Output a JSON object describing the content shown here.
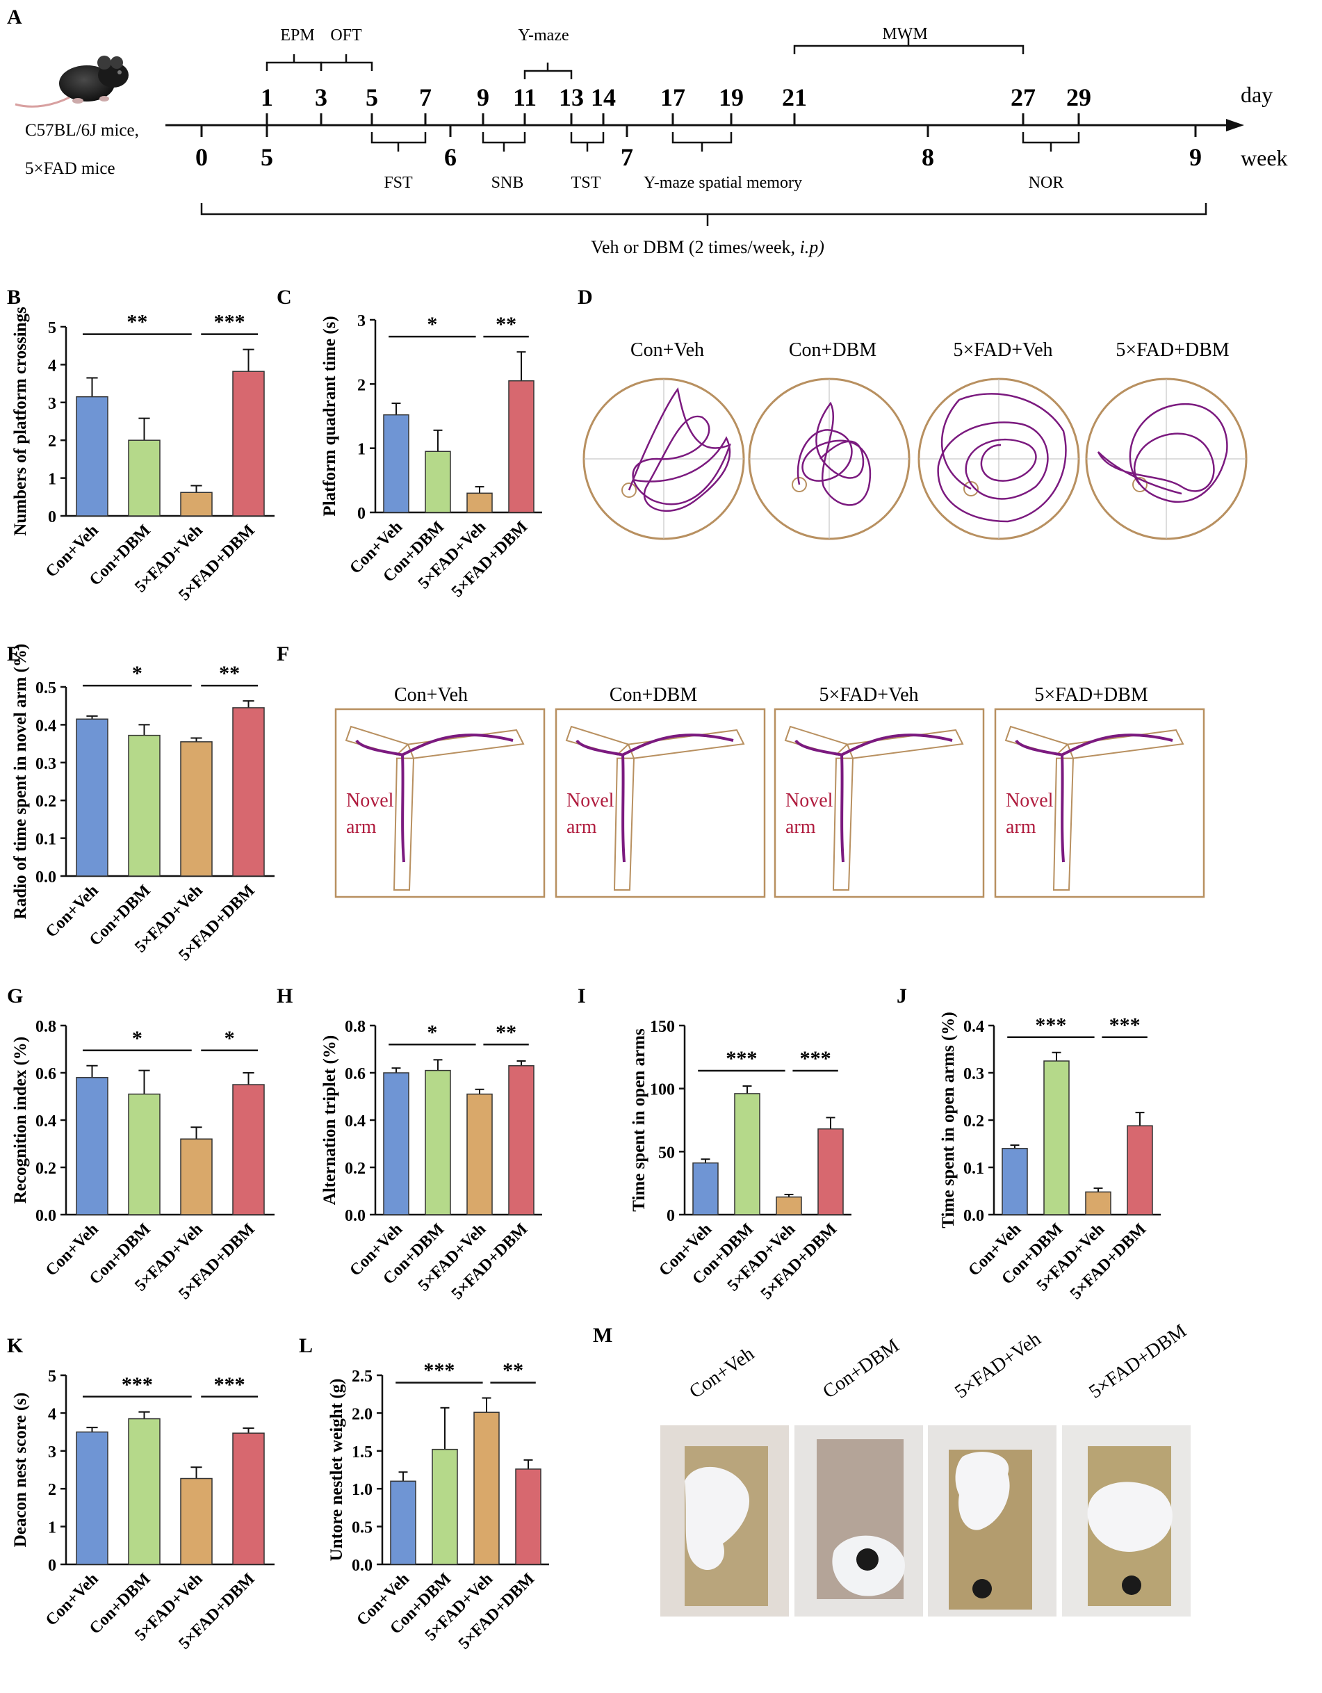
{
  "colors": {
    "blue": "#6f95d4",
    "green": "#b5d98a",
    "orange": "#d9a86a",
    "red": "#d7686f",
    "purple": "#7b1a7f",
    "tan": "#b89060",
    "novel": "#b01c3e",
    "black": "#111111"
  },
  "panel_letters": {
    "A": "A",
    "B": "B",
    "C": "C",
    "D": "D",
    "E": "E",
    "F": "F",
    "G": "G",
    "H": "H",
    "I": "I",
    "J": "J",
    "K": "K",
    "L": "L",
    "M": "M"
  },
  "timeline": {
    "mice": [
      "C57BL/6J mice,",
      "5×FAD mice"
    ],
    "day_label": "day",
    "week_label": "week",
    "day_numbers": [
      "1",
      "3",
      "5",
      "7",
      "9",
      "11",
      "13",
      "14",
      "17",
      "19",
      "21",
      "27",
      "29"
    ],
    "week_numbers": [
      "0",
      "5",
      "6",
      "7",
      "8",
      "9"
    ],
    "upper_tests": [
      "EPM",
      "OFT",
      "Y-maze",
      "MWM"
    ],
    "lower_tests": [
      "FST",
      "SNB",
      "TST",
      "Y-maze spatial memory",
      "NOR"
    ],
    "treatment": "Veh or DBM (2 times/week,",
    "treatment_route": "i.p)"
  },
  "groups": [
    "Con+Veh",
    "Con+DBM",
    "5×FAD+Veh",
    "5×FAD+DBM"
  ],
  "maze": {
    "novel_line1": "Novel",
    "novel_line2": "arm"
  },
  "photos": {
    "labels": [
      "Con+Veh",
      "Con+DBM",
      "5×FAD+Veh",
      "5×FAD+DBM"
    ]
  },
  "chart_data": [
    {
      "id": "B",
      "type": "bar",
      "ylabel": "Numbers of platform crossings",
      "categories": [
        "Con+Veh",
        "Con+DBM",
        "5×FAD+Veh",
        "5×FAD+DBM"
      ],
      "values": [
        3.15,
        2.0,
        0.62,
        3.82
      ],
      "errors": [
        0.5,
        0.58,
        0.18,
        0.58
      ],
      "ylim": [
        0,
        5
      ],
      "yticks": [
        "0",
        "1",
        "2",
        "3",
        "4",
        "5"
      ],
      "significance": [
        {
          "from": 0,
          "to": 2,
          "label": "**"
        },
        {
          "from": 2,
          "to": 3,
          "label": "***"
        }
      ]
    },
    {
      "id": "C",
      "type": "bar",
      "ylabel": "Platform quadrant time (s)",
      "categories": [
        "Con+Veh",
        "Con+DBM",
        "5×FAD+Veh",
        "5×FAD+DBM"
      ],
      "values": [
        1.52,
        0.95,
        0.3,
        2.05
      ],
      "errors": [
        0.18,
        0.33,
        0.1,
        0.45
      ],
      "ylim": [
        0,
        3
      ],
      "yticks": [
        "0",
        "1",
        "2",
        "3"
      ],
      "significance": [
        {
          "from": 0,
          "to": 2,
          "label": "*"
        },
        {
          "from": 2,
          "to": 3,
          "label": "**"
        }
      ]
    },
    {
      "id": "E",
      "type": "bar",
      "ylabel": "Radio of time spent in novel arm (%)",
      "categories": [
        "Con+Veh",
        "Con+DBM",
        "5×FAD+Veh",
        "5×FAD+DBM"
      ],
      "values": [
        0.415,
        0.372,
        0.355,
        0.445
      ],
      "errors": [
        0.008,
        0.028,
        0.01,
        0.018
      ],
      "ylim": [
        0,
        0.5
      ],
      "yticks": [
        "0.0",
        "0.1",
        "0.2",
        "0.3",
        "0.4",
        "0.5"
      ],
      "significance": [
        {
          "from": 0,
          "to": 2,
          "label": "*"
        },
        {
          "from": 2,
          "to": 3,
          "label": "**"
        }
      ]
    },
    {
      "id": "G",
      "type": "bar",
      "ylabel": "Recognition index (%)",
      "categories": [
        "Con+Veh",
        "Con+DBM",
        "5×FAD+Veh",
        "5×FAD+DBM"
      ],
      "values": [
        0.58,
        0.51,
        0.32,
        0.55
      ],
      "errors": [
        0.05,
        0.1,
        0.05,
        0.05
      ],
      "ylim": [
        0,
        0.8
      ],
      "yticks": [
        "0.0",
        "0.2",
        "0.4",
        "0.6",
        "0.8"
      ],
      "significance": [
        {
          "from": 0,
          "to": 2,
          "label": "*"
        },
        {
          "from": 2,
          "to": 3,
          "label": "*"
        }
      ]
    },
    {
      "id": "H",
      "type": "bar",
      "ylabel": "Alternation triplet (%)",
      "categories": [
        "Con+Veh",
        "Con+DBM",
        "5×FAD+Veh",
        "5×FAD+DBM"
      ],
      "values": [
        0.6,
        0.61,
        0.51,
        0.63
      ],
      "errors": [
        0.02,
        0.045,
        0.02,
        0.02
      ],
      "ylim": [
        0,
        0.8
      ],
      "yticks": [
        "0.0",
        "0.2",
        "0.4",
        "0.6",
        "0.8"
      ],
      "significance": [
        {
          "from": 0,
          "to": 2,
          "label": "*"
        },
        {
          "from": 2,
          "to": 3,
          "label": "**"
        }
      ]
    },
    {
      "id": "I",
      "type": "bar",
      "ylabel": "Time spent in open arms",
      "categories": [
        "Con+Veh",
        "Con+DBM",
        "5×FAD+Veh",
        "5×FAD+DBM"
      ],
      "values": [
        41,
        96,
        14,
        68
      ],
      "errors": [
        3,
        6,
        2,
        9
      ],
      "ylim": [
        0,
        150
      ],
      "yticks": [
        "0",
        "50",
        "100",
        "150"
      ],
      "significance": [
        {
          "from": 0,
          "to": 2,
          "label": "***"
        },
        {
          "from": 2,
          "to": 3,
          "label": "***"
        }
      ]
    },
    {
      "id": "J",
      "type": "bar",
      "ylabel": "Time spent in open arms (%)",
      "categories": [
        "Con+Veh",
        "Con+DBM",
        "5×FAD+Veh",
        "5×FAD+DBM"
      ],
      "values": [
        0.14,
        0.325,
        0.048,
        0.188
      ],
      "errors": [
        0.007,
        0.018,
        0.008,
        0.028
      ],
      "ylim": [
        0,
        0.4
      ],
      "yticks": [
        "0.0",
        "0.1",
        "0.2",
        "0.3",
        "0.4"
      ],
      "significance": [
        {
          "from": 0,
          "to": 2,
          "label": "***"
        },
        {
          "from": 2,
          "to": 3,
          "label": "***"
        }
      ]
    },
    {
      "id": "K",
      "type": "bar",
      "ylabel": "Deacon nest score (s)",
      "categories": [
        "Con+Veh",
        "Con+DBM",
        "5×FAD+Veh",
        "5×FAD+DBM"
      ],
      "values": [
        3.5,
        3.85,
        2.27,
        3.47
      ],
      "errors": [
        0.12,
        0.18,
        0.3,
        0.13
      ],
      "ylim": [
        0,
        5
      ],
      "yticks": [
        "0",
        "1",
        "2",
        "3",
        "4",
        "5"
      ],
      "significance": [
        {
          "from": 0,
          "to": 2,
          "label": "***"
        },
        {
          "from": 2,
          "to": 3,
          "label": "***"
        }
      ]
    },
    {
      "id": "L",
      "type": "bar",
      "ylabel": "Untore nestlet weight (g)",
      "categories": [
        "Con+Veh",
        "Con+DBM",
        "5×FAD+Veh",
        "5×FAD+DBM"
      ],
      "values": [
        1.1,
        1.52,
        2.01,
        1.26
      ],
      "errors": [
        0.12,
        0.55,
        0.19,
        0.12
      ],
      "ylim": [
        0,
        2.5
      ],
      "yticks": [
        "0.0",
        "0.5",
        "1.0",
        "1.5",
        "2.0",
        "2.5"
      ],
      "significance": [
        {
          "from": 0,
          "to": 2,
          "label": "***"
        },
        {
          "from": 2,
          "to": 3,
          "label": "**"
        }
      ]
    }
  ]
}
